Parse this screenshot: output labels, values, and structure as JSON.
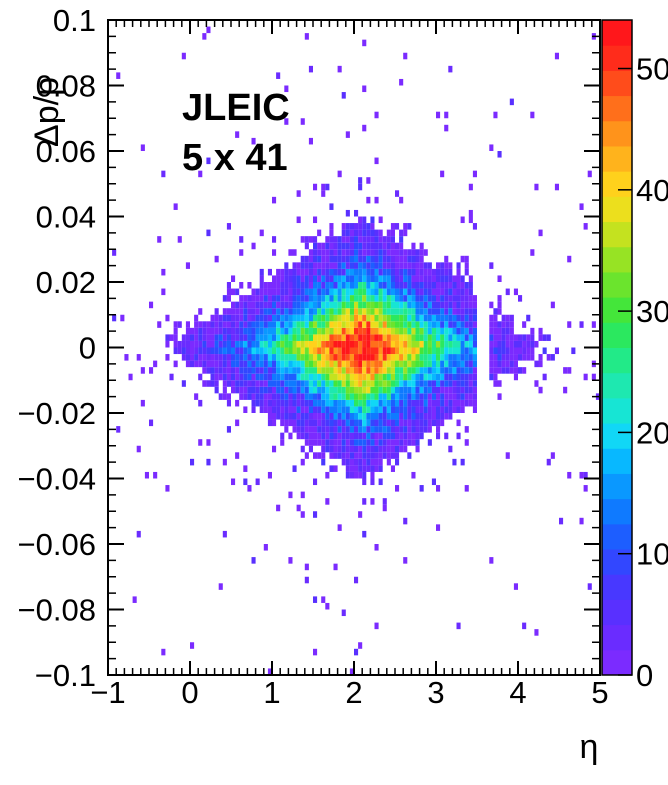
{
  "chart_data": {
    "type": "heatmap",
    "title": "",
    "xlabel": "η",
    "ylabel": "Δp/p",
    "x_range": [
      -1,
      5
    ],
    "y_range": [
      -0.1,
      0.1
    ],
    "x_ticks": [
      "−1",
      "0",
      "1",
      "2",
      "3",
      "4",
      "5"
    ],
    "y_ticks": [
      "−0.1",
      "−0.08",
      "−0.06",
      "−0.04",
      "−0.02",
      "0",
      "0.02",
      "0.04",
      "0.06",
      "0.08",
      "0.1"
    ],
    "annotation_lines": [
      "JLEIC",
      "5 x 41"
    ],
    "color_scale": {
      "range": [
        0,
        54
      ],
      "ticks": [
        "0",
        "10",
        "20",
        "30",
        "40",
        "50"
      ]
    },
    "distribution": {
      "peak_counts": 54,
      "center": {
        "eta": 2.1,
        "dp_over_p": 0.0
      },
      "eta_sigma": 0.85,
      "dp_sigma": 0.022,
      "gap_eta_range": [
        3.5,
        3.65
      ],
      "low_eta_edge": -0.95,
      "high_eta_edge": 5.0
    },
    "grid": false,
    "legend": "color bar on right"
  }
}
